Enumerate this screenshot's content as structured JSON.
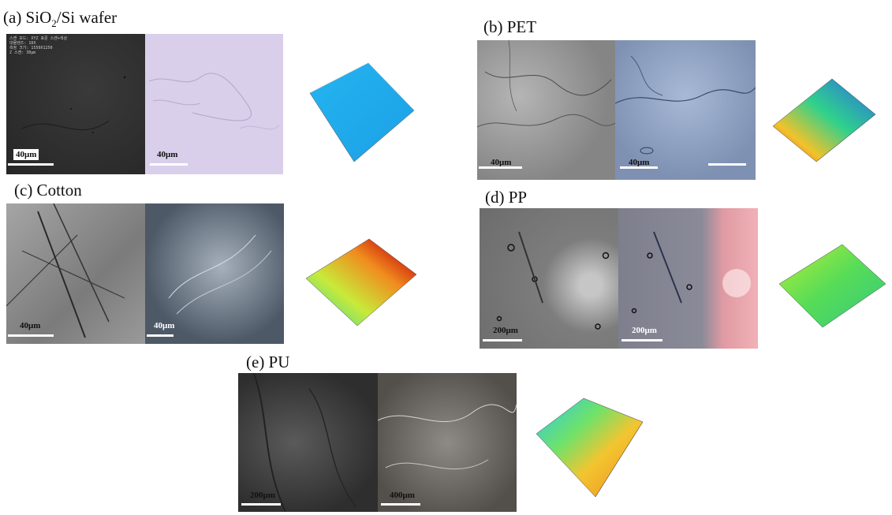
{
  "panels": [
    {
      "id": "a",
      "title_prefix": "(a) SiO",
      "title_sub": "2",
      "title_suffix": "/Si wafer",
      "scales": [
        "40μm",
        "40μm"
      ]
    },
    {
      "id": "b",
      "title": "(b) PET",
      "scales": [
        "40μm",
        "40μm"
      ]
    },
    {
      "id": "c",
      "title": "(c) Cotton",
      "scales": [
        "40μm",
        "40μm"
      ]
    },
    {
      "id": "d",
      "title": "(d) PP",
      "scales": [
        "200μm",
        "200μm"
      ]
    },
    {
      "id": "e",
      "title": "(e) PU",
      "scales": [
        "200μm",
        "400μm"
      ]
    }
  ],
  "colors": {
    "wafer_sem": "#2f2f2f",
    "wafer_optical": "#d8cde9",
    "pet_sem": "#9a9a9a",
    "pet_optical": "#8fa3c4",
    "cotton_sem": "#8d8d8d",
    "cotton_optical": "#4c5766",
    "pp_sem": "#7d7d7d",
    "pp_optical": "#8e8e9a",
    "pp_pink": "#e9a0a8",
    "pu_sem": "#4a4a4a",
    "pu_optical": "#6f6d6a"
  }
}
